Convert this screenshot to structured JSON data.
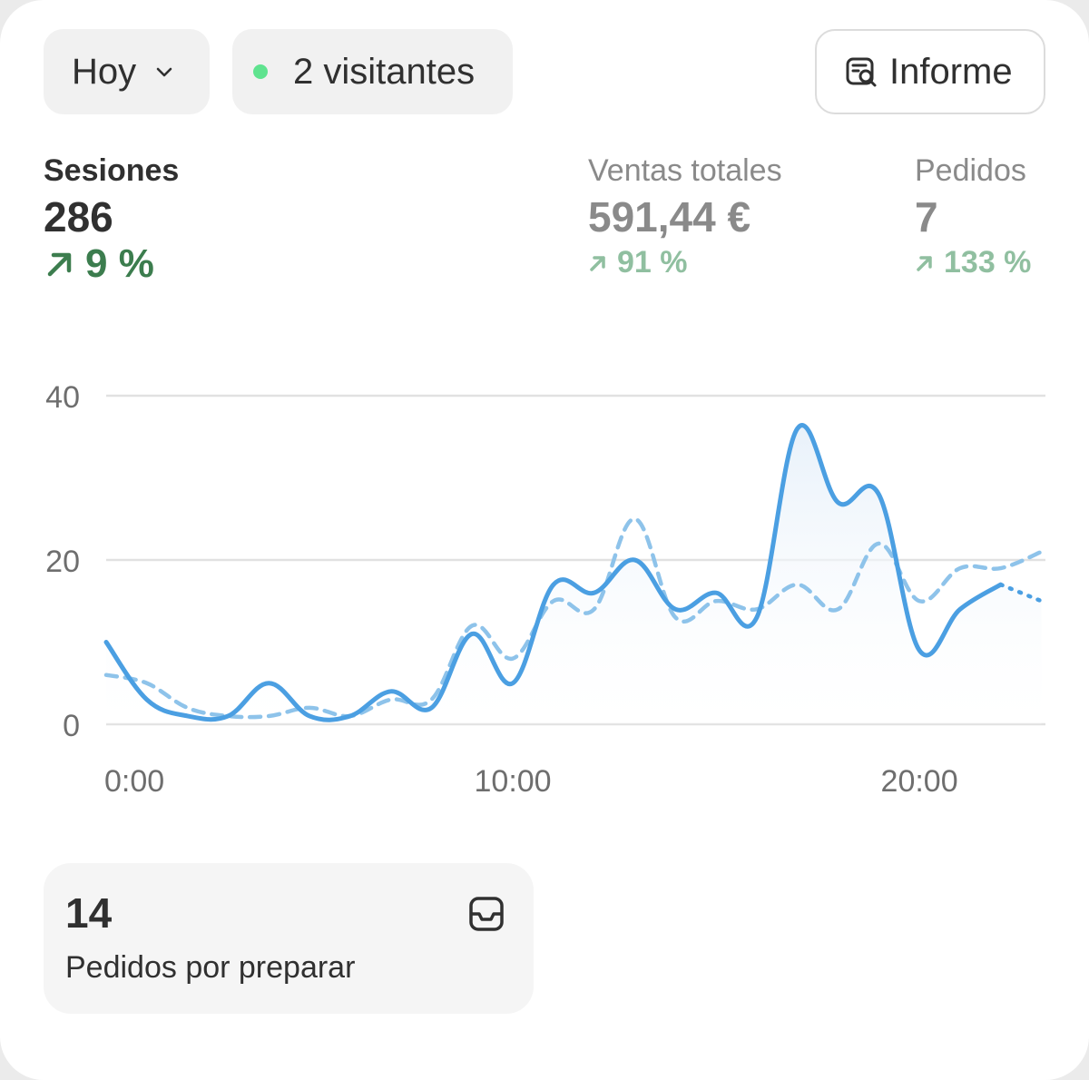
{
  "toolbar": {
    "date_label": "Hoy",
    "visitors_label": "2 visitantes",
    "report_label": "Informe"
  },
  "metrics": [
    {
      "title": "Sesiones",
      "value": "286",
      "change": "9 %",
      "active": true
    },
    {
      "title": "Ventas totales",
      "value": "591,44 €",
      "change": "91 %",
      "active": false
    },
    {
      "title": "Pedidos",
      "value": "7",
      "change": "133 %",
      "active": false
    }
  ],
  "colors": {
    "line_current": "#4b9fe2",
    "line_previous": "#8ec3ea",
    "positive": "#3c7d4e",
    "visitor_dot": "#5fe38f"
  },
  "icons": {
    "dropdown": "chevron-down-icon",
    "visitors": "live-dot-icon",
    "report": "report-search-icon",
    "trend": "arrow-up-right-icon",
    "inbox": "inbox-icon"
  },
  "chart_data": {
    "type": "line",
    "title": "",
    "xlabel": "",
    "ylabel": "",
    "ylim": [
      0,
      40
    ],
    "yticks": [
      0,
      20,
      40
    ],
    "xticks": [
      "0:00",
      "10:00",
      "20:00"
    ],
    "grid": true,
    "x": [
      0,
      1,
      2,
      3,
      4,
      5,
      6,
      7,
      8,
      9,
      10,
      11,
      12,
      13,
      14,
      15,
      16,
      17,
      18,
      19,
      20,
      21,
      22,
      23
    ],
    "series": [
      {
        "values": [
          10,
          3,
          1,
          1,
          5,
          1,
          1,
          4,
          2,
          11,
          5,
          17,
          16,
          20,
          14,
          16,
          13,
          36,
          27,
          28,
          9,
          14,
          17,
          15
        ],
        "style": "solid-area",
        "partial_from": 22
      },
      {
        "values": [
          6,
          5,
          2,
          1,
          1,
          2,
          1,
          3,
          3,
          12,
          8,
          15,
          14,
          25,
          13,
          15,
          14,
          17,
          14,
          22,
          15,
          19,
          19,
          21
        ],
        "style": "dashed"
      }
    ]
  },
  "todo": {
    "count": "14",
    "label": "Pedidos por preparar"
  }
}
